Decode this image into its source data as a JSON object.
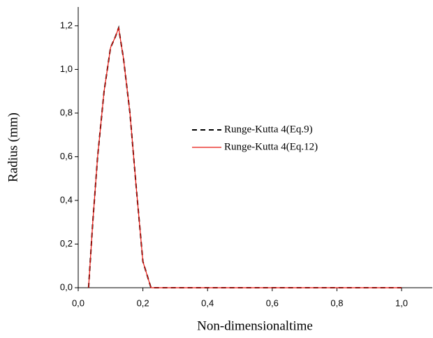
{
  "chart_data": {
    "type": "line",
    "x_label": "Non-dimensionaltime",
    "y_label": "Radius (mm)",
    "x": [
      0.032,
      0.045,
      0.06,
      0.08,
      0.1,
      0.115,
      0.125,
      0.14,
      0.16,
      0.18,
      0.2,
      0.225,
      0.4,
      0.6,
      0.8,
      1.0
    ],
    "series": [
      {
        "name": "Runge-Kutta 4(Eq.9)",
        "color": "#000000",
        "dash": true,
        "values": [
          0,
          0.3,
          0.6,
          0.9,
          1.1,
          1.15,
          1.19,
          1.05,
          0.8,
          0.45,
          0.12,
          0,
          0,
          0,
          0,
          0
        ]
      },
      {
        "name": "Runge-Kutta 4(Eq.12)",
        "color": "#e8130c",
        "dash": false,
        "values": [
          0,
          0.3,
          0.6,
          0.9,
          1.1,
          1.15,
          1.19,
          1.05,
          0.8,
          0.45,
          0.12,
          0,
          0,
          0,
          0,
          0
        ]
      }
    ],
    "xlim": [
      0,
      1.095
    ],
    "ylim": [
      0,
      1.286
    ],
    "xticks": [
      {
        "value": 0,
        "label": "0,0"
      },
      {
        "value": 0.2,
        "label": "0,2"
      },
      {
        "value": 0.4,
        "label": "0,4"
      },
      {
        "value": 0.6,
        "label": "0,6"
      },
      {
        "value": 0.8,
        "label": "0,8"
      },
      {
        "value": 1.0,
        "label": "1,0"
      }
    ],
    "yticks": [
      {
        "value": 0,
        "label": "0,0"
      },
      {
        "value": 0.2,
        "label": "0,2"
      },
      {
        "value": 0.4,
        "label": "0,4"
      },
      {
        "value": 0.6,
        "label": "0,6"
      },
      {
        "value": 0.8,
        "label": "0,8"
      },
      {
        "value": 1.0,
        "label": "1,0"
      },
      {
        "value": 1.2,
        "label": "1,2"
      }
    ],
    "legend": "center"
  }
}
